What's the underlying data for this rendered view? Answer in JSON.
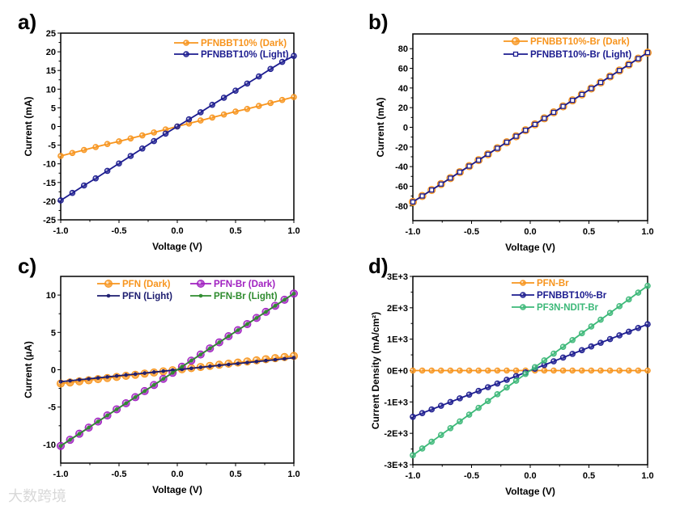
{
  "watermark": "大数跨境",
  "chart_data": [
    {
      "panel": "a)",
      "type": "line",
      "xlabel": "Voltage (V)",
      "ylabel": "Current (mA)",
      "xlim": [
        -1,
        1
      ],
      "ylim": [
        -25,
        25
      ],
      "xticks": [
        "-1.0",
        "-0.5",
        "0.0",
        "0.5",
        "1.0"
      ],
      "yticks": [
        "-25",
        "-20",
        "-15",
        "-10",
        "-5",
        "0",
        "5",
        "10",
        "15",
        "20",
        "25"
      ],
      "legend_position": "top-right",
      "x": [
        -1,
        -0.9,
        -0.8,
        -0.7,
        -0.6,
        -0.5,
        -0.4,
        -0.3,
        -0.2,
        -0.1,
        0,
        0.1,
        0.2,
        0.3,
        0.4,
        0.5,
        0.6,
        0.7,
        0.8,
        0.9,
        1
      ],
      "series": [
        {
          "name": "PFNBBT10% (Dark)",
          "color": "#f7941d",
          "marker": "circle",
          "values": [
            -7.9,
            -7.1,
            -6.3,
            -5.5,
            -4.7,
            -4.0,
            -3.2,
            -2.4,
            -1.6,
            -0.8,
            0,
            0.8,
            1.6,
            2.4,
            3.2,
            4.0,
            4.7,
            5.5,
            6.3,
            7.1,
            7.9
          ]
        },
        {
          "name": "PFNBBT10% (Light)",
          "color": "#1c1c8f",
          "marker": "circle",
          "values": [
            -19.8,
            -17.8,
            -15.8,
            -13.9,
            -11.9,
            -9.9,
            -7.9,
            -5.9,
            -3.9,
            -1.9,
            0,
            1.9,
            3.8,
            5.8,
            7.7,
            9.6,
            11.5,
            13.4,
            15.4,
            17.3,
            18.9
          ]
        }
      ]
    },
    {
      "panel": "b)",
      "type": "line",
      "xlabel": "Voltage (V)",
      "ylabel": "Current (mA)",
      "xlim": [
        -1,
        1
      ],
      "ylim": [
        -95,
        95
      ],
      "xticks": [
        "-1.0",
        "-0.5",
        "0.0",
        "0.5",
        "1.0"
      ],
      "yticks": [
        "-80",
        "-60",
        "-40",
        "-20",
        "0",
        "20",
        "40",
        "60",
        "80"
      ],
      "legend_position": "top-right",
      "x": [
        -1,
        -0.92,
        -0.84,
        -0.76,
        -0.68,
        -0.6,
        -0.52,
        -0.44,
        -0.36,
        -0.28,
        -0.2,
        -0.12,
        -0.04,
        0.04,
        0.12,
        0.2,
        0.28,
        0.36,
        0.44,
        0.52,
        0.6,
        0.68,
        0.76,
        0.84,
        0.92,
        1
      ],
      "series": [
        {
          "name": "PFNBBT10%-Br (Dark)",
          "color": "#f7941d",
          "marker": "big-circle",
          "values": [
            -76,
            -69.9,
            -63.8,
            -57.8,
            -51.7,
            -45.6,
            -39.5,
            -33.4,
            -27.4,
            -21.3,
            -15.2,
            -9.1,
            -3.0,
            3.0,
            9.1,
            15.2,
            21.3,
            27.4,
            33.4,
            39.5,
            45.6,
            51.7,
            57.8,
            63.8,
            69.9,
            76
          ]
        },
        {
          "name": "PFNBBT10%-Br (Light)",
          "color": "#1c1c8f",
          "marker": "square",
          "values": [
            -76,
            -69.9,
            -63.8,
            -57.8,
            -51.7,
            -45.6,
            -39.5,
            -33.4,
            -27.4,
            -21.3,
            -15.2,
            -9.1,
            -3.0,
            3.0,
            9.1,
            15.2,
            21.3,
            27.4,
            33.4,
            39.5,
            45.6,
            51.7,
            57.8,
            63.8,
            69.9,
            76
          ]
        }
      ]
    },
    {
      "panel": "c)",
      "type": "line",
      "xlabel": "Voltage (V)",
      "ylabel": "Current (μA)",
      "xlim": [
        -1,
        1
      ],
      "ylim": [
        -12.5,
        12.5
      ],
      "xticks": [
        "-1.0",
        "-0.5",
        "0.0",
        "0.5",
        "1.0"
      ],
      "yticks": [
        "-10",
        "-5",
        "0",
        "5",
        "10"
      ],
      "legend_position": "top",
      "x": [
        -1,
        -0.92,
        -0.84,
        -0.76,
        -0.68,
        -0.6,
        -0.52,
        -0.44,
        -0.36,
        -0.28,
        -0.2,
        -0.12,
        -0.04,
        0.04,
        0.12,
        0.2,
        0.28,
        0.36,
        0.44,
        0.52,
        0.6,
        0.68,
        0.76,
        0.84,
        0.92,
        1
      ],
      "series": [
        {
          "name": "PFN (Dark)",
          "color": "#f7941d",
          "marker": "big-circle",
          "values": [
            -1.85,
            -1.7,
            -1.55,
            -1.41,
            -1.26,
            -1.11,
            -0.96,
            -0.81,
            -0.67,
            -0.52,
            -0.37,
            -0.22,
            -0.07,
            0.07,
            0.22,
            0.37,
            0.52,
            0.67,
            0.81,
            0.96,
            1.11,
            1.26,
            1.41,
            1.55,
            1.7,
            1.85
          ]
        },
        {
          "name": "PFN-Br (Dark)",
          "color": "#a020c0",
          "marker": "big-circle",
          "values": [
            -10.2,
            -9.38,
            -8.57,
            -7.75,
            -6.94,
            -6.12,
            -5.3,
            -4.49,
            -3.67,
            -2.86,
            -2.04,
            -1.22,
            -0.41,
            0.41,
            1.22,
            2.04,
            2.86,
            3.67,
            4.49,
            5.3,
            6.12,
            6.94,
            7.75,
            8.57,
            9.38,
            10.2
          ]
        },
        {
          "name": "PFN (Light)",
          "color": "#1c1c6f",
          "marker": "small",
          "values": [
            -1.6,
            -1.47,
            -1.34,
            -1.22,
            -1.09,
            -0.96,
            -0.83,
            -0.7,
            -0.58,
            -0.45,
            -0.32,
            -0.19,
            -0.06,
            0.06,
            0.19,
            0.32,
            0.45,
            0.58,
            0.7,
            0.83,
            0.96,
            1.09,
            1.22,
            1.34,
            1.47,
            1.6
          ]
        },
        {
          "name": "PFN-Br (Light)",
          "color": "#2e8b2e",
          "marker": "small",
          "values": [
            -10.2,
            -9.38,
            -8.57,
            -7.75,
            -6.94,
            -6.12,
            -5.3,
            -4.49,
            -3.67,
            -2.86,
            -2.04,
            -1.22,
            -0.41,
            0.41,
            1.22,
            2.04,
            2.86,
            3.67,
            4.49,
            5.3,
            6.12,
            6.94,
            7.75,
            8.57,
            9.38,
            10.2
          ]
        }
      ]
    },
    {
      "panel": "d)",
      "type": "line",
      "xlabel": "Voltage (V)",
      "ylabel": "Current Density (mA/cm²)",
      "xlim": [
        -1,
        1
      ],
      "ylim": [
        -3000,
        3000
      ],
      "xticks": [
        "-1.0",
        "-0.5",
        "0.0",
        "0.5",
        "1.0"
      ],
      "yticks": [
        "-3E+3",
        "-2E+3",
        "-1E+3",
        "0E+0",
        "1E+3",
        "2E+3",
        "3E+3"
      ],
      "legend_position": "top-center",
      "x": [
        -1,
        -0.92,
        -0.84,
        -0.76,
        -0.68,
        -0.6,
        -0.52,
        -0.44,
        -0.36,
        -0.28,
        -0.2,
        -0.12,
        -0.04,
        0.04,
        0.12,
        0.2,
        0.28,
        0.36,
        0.44,
        0.52,
        0.6,
        0.68,
        0.76,
        0.84,
        0.92,
        1
      ],
      "series": [
        {
          "name": "PFN-Br",
          "color": "#f7941d",
          "marker": "circle",
          "values": [
            0,
            0,
            0,
            0,
            0,
            0,
            0,
            0,
            0,
            0,
            0,
            0,
            0,
            0,
            0,
            0,
            0,
            0,
            0,
            0,
            0,
            0,
            0,
            0,
            0,
            0
          ]
        },
        {
          "name": "PFNBBT10%-Br",
          "color": "#1c1c8f",
          "marker": "circle",
          "values": [
            -1475,
            -1357,
            -1239,
            -1121,
            -1003,
            -885,
            -767,
            -649,
            -531,
            -413,
            -295,
            -177,
            -59,
            59,
            177,
            295,
            413,
            531,
            649,
            767,
            885,
            1003,
            1121,
            1239,
            1357,
            1475
          ]
        },
        {
          "name": "PF3N-NDIT-Br",
          "color": "#3cb878",
          "marker": "circle",
          "values": [
            -2700,
            -2484,
            -2268,
            -2052,
            -1836,
            -1620,
            -1404,
            -1188,
            -972,
            -756,
            -540,
            -324,
            -108,
            108,
            324,
            540,
            756,
            972,
            1188,
            1404,
            1620,
            1836,
            2052,
            2268,
            2484,
            2700
          ]
        }
      ]
    }
  ]
}
